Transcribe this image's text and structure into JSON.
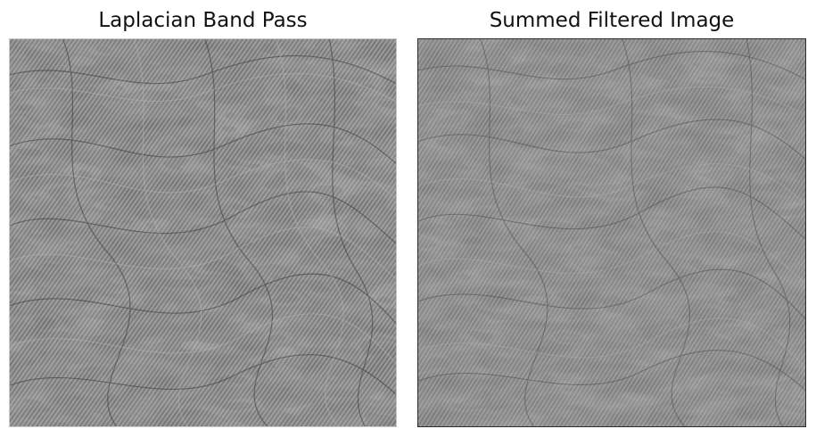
{
  "panels": [
    {
      "title": "Laplacian Band Pass",
      "image": "laplacian-band-pass-texture",
      "tone": "#7a7a7a"
    },
    {
      "title": "Summed Filtered Image",
      "image": "summed-filtered-texture",
      "tone": "#808080"
    }
  ]
}
